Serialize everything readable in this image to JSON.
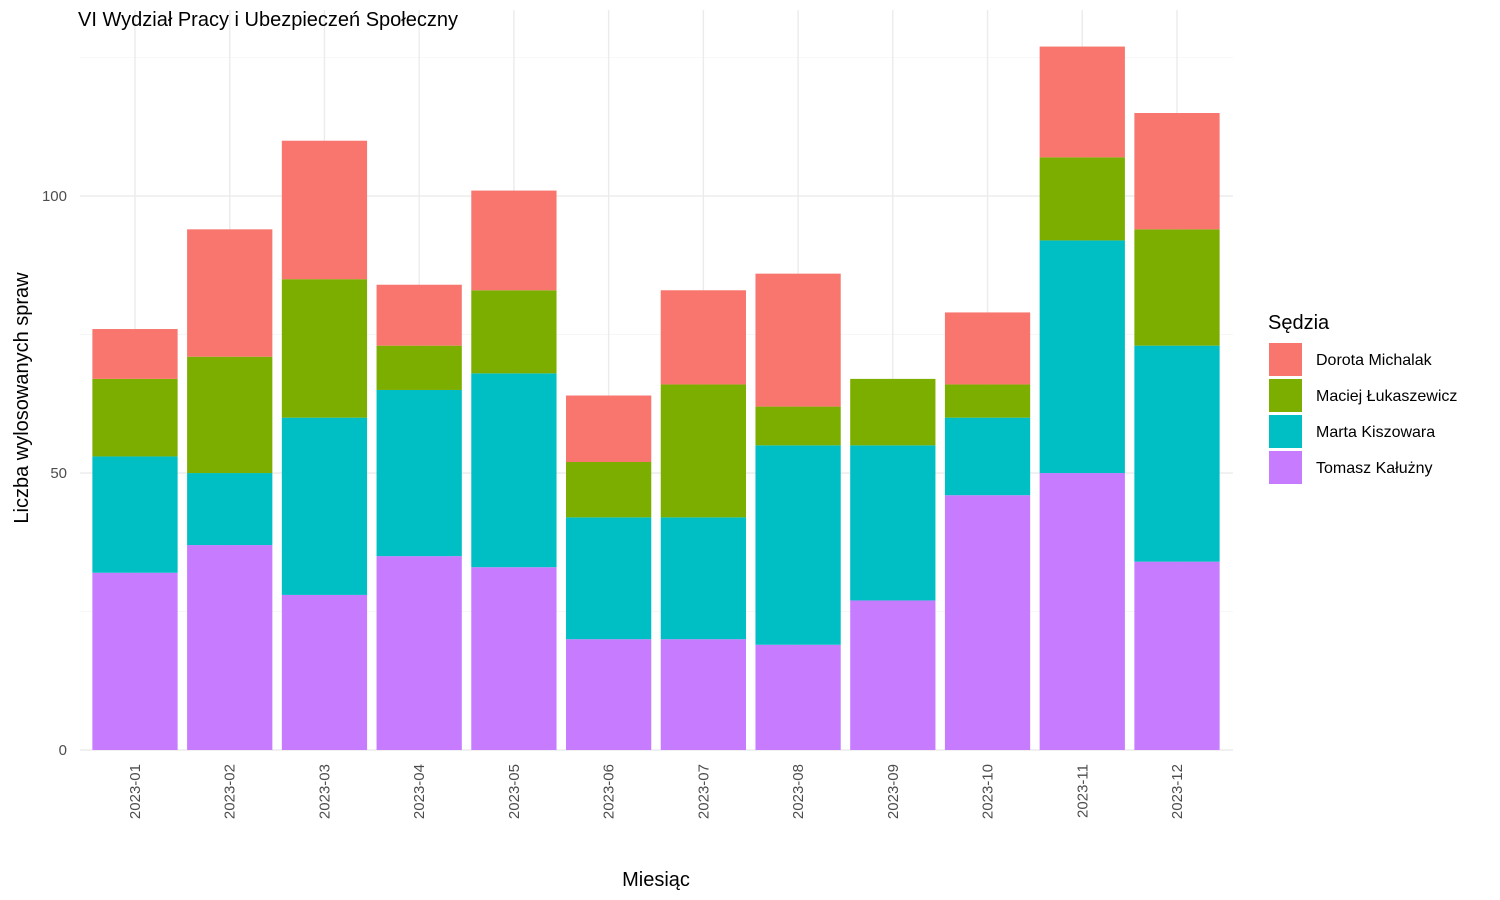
{
  "chart_data": {
    "type": "bar",
    "stacked": true,
    "title": "VI Wydział Pracy i Ubezpieczeń Społeczny",
    "xlabel": "Miesiąc",
    "ylabel": "Liczba wylosowanych spraw",
    "ylim": [
      0,
      128
    ],
    "yticks": [
      0,
      50,
      100
    ],
    "grid": true,
    "legend_title": "Sędzia",
    "legend_position": "right",
    "categories": [
      "2023-01",
      "2023-02",
      "2023-03",
      "2023-04",
      "2023-05",
      "2023-06",
      "2023-07",
      "2023-08",
      "2023-09",
      "2023-10",
      "2023-11",
      "2023-12"
    ],
    "series": [
      {
        "name": "Tomasz Kałużny",
        "color": "#C77CFF",
        "values": [
          32,
          37,
          28,
          35,
          33,
          20,
          20,
          19,
          27,
          46,
          50,
          34
        ]
      },
      {
        "name": "Marta Kiszowara",
        "color": "#00BFC4",
        "values": [
          21,
          13,
          32,
          30,
          35,
          22,
          22,
          36,
          28,
          14,
          42,
          39
        ]
      },
      {
        "name": "Maciej Łukaszewicz",
        "color": "#7CAE00",
        "values": [
          14,
          21,
          25,
          8,
          15,
          10,
          24,
          7,
          12,
          6,
          15,
          21
        ]
      },
      {
        "name": "Dorota Michalak",
        "color": "#F8766D",
        "values": [
          9,
          23,
          25,
          11,
          18,
          12,
          17,
          24,
          0,
          13,
          20,
          21
        ]
      }
    ],
    "legend_order": [
      "Dorota Michalak",
      "Maciej Łukaszewicz",
      "Marta Kiszowara",
      "Tomasz Kałużny"
    ]
  }
}
